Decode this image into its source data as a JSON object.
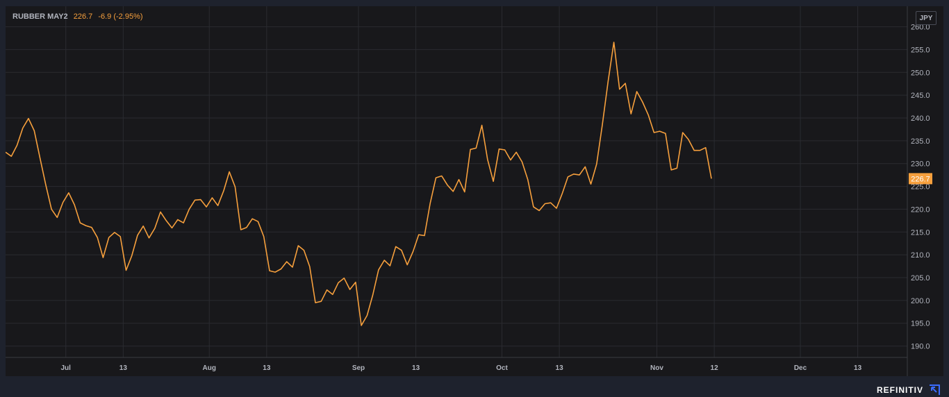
{
  "header": {
    "symbol": "RUBBER MAY2",
    "last": "226.7",
    "change": "-6.9",
    "change_pct": "(-2.95%)"
  },
  "currency_badge": "JPY",
  "brand": {
    "name": "REFINITIV",
    "icon": "refinitiv-logo-icon"
  },
  "colors": {
    "line": "#f7a03d",
    "background": "#18181b",
    "grid": "#2a2b30",
    "badge": "#f7a03d"
  },
  "chart_data": {
    "type": "line",
    "title": "RUBBER MAY2",
    "last_value": 226.7,
    "ylim": [
      187.5,
      264.5
    ],
    "yticks": [
      190.0,
      195.0,
      200.0,
      205.0,
      210.0,
      215.0,
      220.0,
      225.0,
      230.0,
      235.0,
      240.0,
      245.0,
      250.0,
      255.0,
      260.0
    ],
    "grid": true,
    "x_ticks": [
      {
        "label": "Jul",
        "index": 10.5
      },
      {
        "label": "13",
        "index": 20.5
      },
      {
        "label": "Aug",
        "index": 35.5
      },
      {
        "label": "13",
        "index": 45.5
      },
      {
        "label": "Sep",
        "index": 61.5
      },
      {
        "label": "13",
        "index": 71.5
      },
      {
        "label": "Oct",
        "index": 86.5
      },
      {
        "label": "13",
        "index": 96.5
      },
      {
        "label": "Nov",
        "index": 113.5
      },
      {
        "label": "12",
        "index": 123.5
      },
      {
        "label": "Dec",
        "index": 138.5
      },
      {
        "label": "13",
        "index": 148.5
      }
    ],
    "series": [
      {
        "values": [
          232.5,
          231.6,
          234.0,
          237.8,
          239.9,
          237.2,
          231.2,
          225.4,
          220.0,
          218.2,
          221.5,
          223.6,
          221.0,
          217.0,
          216.4,
          216.0,
          213.8,
          209.4,
          213.8,
          214.9,
          214.0,
          206.6,
          209.8,
          214.3,
          216.3,
          213.7,
          215.8,
          219.4,
          217.5,
          215.9,
          217.7,
          217.0,
          220.0,
          222.0,
          222.1,
          220.5,
          222.5,
          220.8,
          224.0,
          228.2,
          224.9,
          215.5,
          216.0,
          217.9,
          217.3,
          214.0,
          206.5,
          206.2,
          206.9,
          208.5,
          207.3,
          212.0,
          211.0,
          207.4,
          199.5,
          199.8,
          202.3,
          201.3,
          203.9,
          204.9,
          202.4,
          204.0,
          194.5,
          196.7,
          201.2,
          206.7,
          208.8,
          207.6,
          211.8,
          211.0,
          207.8,
          210.7,
          214.4,
          214.2,
          221.3,
          226.9,
          227.3,
          225.3,
          223.9,
          226.5,
          223.8,
          233.1,
          233.4,
          238.4,
          230.9,
          226.1,
          233.2,
          233.0,
          230.8,
          232.5,
          230.4,
          226.5,
          220.5,
          219.7,
          221.2,
          221.4,
          220.2,
          223.4,
          227.1,
          227.7,
          227.5,
          229.3,
          225.5,
          229.9,
          238.5,
          248.0,
          256.6,
          246.3,
          247.6,
          240.9,
          245.8,
          243.5,
          240.7,
          236.8,
          237.1,
          236.6,
          228.6,
          229.0,
          236.8,
          235.3,
          232.9,
          232.9,
          233.5,
          226.7
        ]
      }
    ]
  }
}
